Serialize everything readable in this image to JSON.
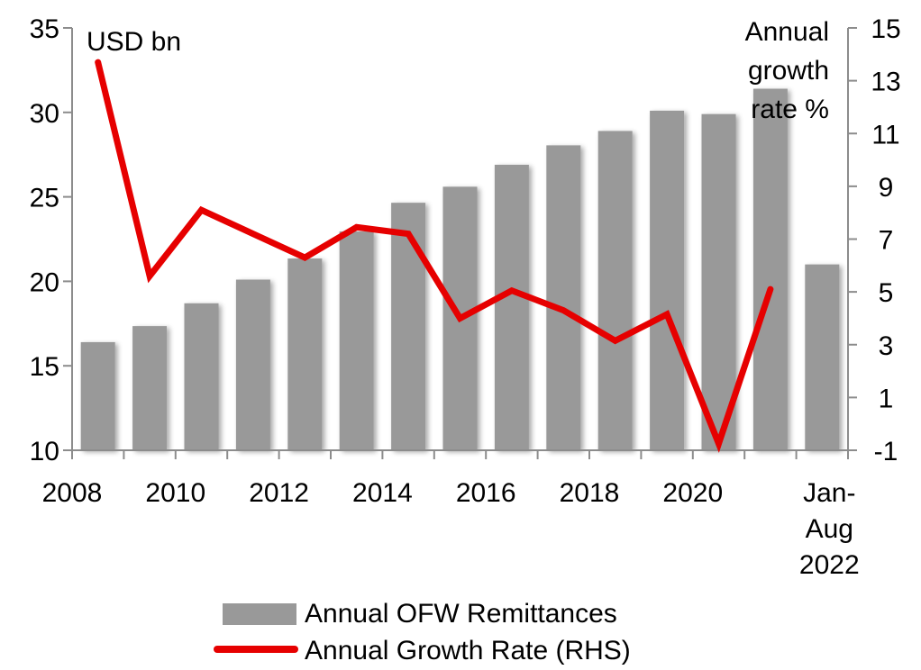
{
  "chart_data": {
    "type": "bar+line",
    "title": "",
    "categories": [
      "2008",
      "2009",
      "2010",
      "2011",
      "2012",
      "2013",
      "2014",
      "2015",
      "2016",
      "2017",
      "2018",
      "2019",
      "2020",
      "2021",
      "Jan-Aug 2022"
    ],
    "x_tick_labels": [
      "2008",
      "2010",
      "2012",
      "2014",
      "2016",
      "2018",
      "2020",
      "Jan-\nAug\n2022"
    ],
    "x_tick_label_categories": [
      "2008",
      "2010",
      "2012",
      "2014",
      "2016",
      "2018",
      "2020",
      "Jan-Aug 2022"
    ],
    "series": [
      {
        "name": "Annual OFW Remittances",
        "type": "bar",
        "axis": "left",
        "color": "#999999",
        "values": [
          16.4,
          17.35,
          18.7,
          20.1,
          21.35,
          22.95,
          24.65,
          25.6,
          26.9,
          28.05,
          28.9,
          30.1,
          29.9,
          31.4,
          21.0
        ]
      },
      {
        "name": "Annual Growth Rate (RHS)",
        "type": "line",
        "axis": "right",
        "color": "#e60000",
        "values": [
          13.7,
          5.6,
          8.1,
          7.2,
          6.3,
          7.45,
          7.2,
          4.0,
          5.05,
          4.3,
          3.15,
          4.15,
          -0.75,
          5.1,
          null
        ]
      }
    ],
    "left_axis": {
      "label": "USD bn",
      "ylim": [
        10,
        35
      ],
      "ticks": [
        10,
        15,
        20,
        25,
        30,
        35
      ]
    },
    "right_axis": {
      "label_lines": [
        "Annual",
        "growth",
        "rate %"
      ],
      "ylim": [
        -1,
        15
      ],
      "ticks": [
        -1,
        1,
        3,
        5,
        7,
        9,
        11,
        13,
        15
      ]
    },
    "grid": false,
    "legend": {
      "position": "bottom",
      "entries": [
        "Annual OFW Remittances",
        "Annual Growth Rate (RHS)"
      ]
    }
  }
}
